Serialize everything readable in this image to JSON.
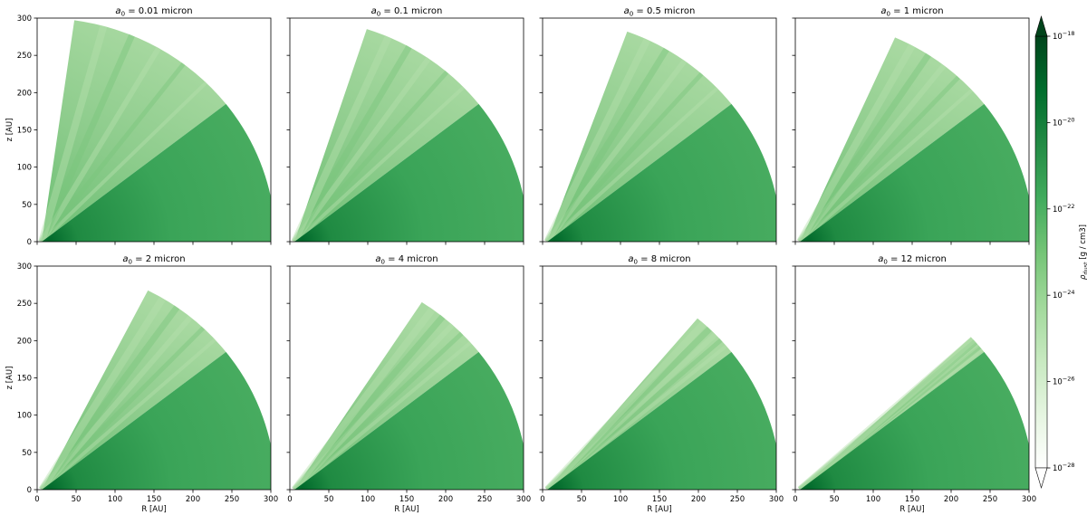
{
  "colorbar": {
    "label": "ρ_dust [g / cm3]",
    "label_main": "ρ",
    "label_sub": "dust",
    "label_rest": " [g / cm3]",
    "colormap": "Greens",
    "scale": "log",
    "range": [
      1e-28,
      1e-18
    ],
    "extend": "both",
    "ticks": [
      {
        "base": "10",
        "exp": "−18",
        "value": 1e-18
      },
      {
        "base": "10",
        "exp": "−20",
        "value": 1e-20
      },
      {
        "base": "10",
        "exp": "−22",
        "value": 1e-22
      },
      {
        "base": "10",
        "exp": "−24",
        "value": 1e-24
      },
      {
        "base": "10",
        "exp": "−26",
        "value": 1e-26
      },
      {
        "base": "10",
        "exp": "−28",
        "value": 1e-28
      }
    ],
    "colors": [
      "#ffffff",
      "#e5f5e0",
      "#c7e9c0",
      "#a1d99b",
      "#74c476",
      "#41ab5d",
      "#238b45",
      "#006d2c",
      "#00441b"
    ]
  },
  "chart_data": [
    {
      "type": "heatmap",
      "title_var": "a",
      "title_sub": "0",
      "title_value": "= 0.01 micron",
      "xlabel": "",
      "ylabel": "z [AU]",
      "xlim": [
        0,
        300
      ],
      "ylim": [
        0,
        300
      ],
      "envelope_outer_radius_AU": 300,
      "envelope_edge_angle_deg": 82,
      "disk_outer_radius_AU": 300,
      "disk_edge_angle_deg": 38,
      "inner_radius_AU": 10
    },
    {
      "type": "heatmap",
      "title_var": "a",
      "title_sub": "0",
      "title_value": "= 0.1 micron",
      "xlabel": "",
      "ylabel": "",
      "xlim": [
        0,
        300
      ],
      "ylim": [
        0,
        300
      ],
      "envelope_outer_radius_AU": 300,
      "envelope_edge_angle_deg": 72,
      "disk_outer_radius_AU": 300,
      "disk_edge_angle_deg": 38,
      "inner_radius_AU": 10
    },
    {
      "type": "heatmap",
      "title_var": "a",
      "title_sub": "0",
      "title_value": "= 0.5 micron",
      "xlabel": "",
      "ylabel": "",
      "xlim": [
        0,
        300
      ],
      "ylim": [
        0,
        300
      ],
      "envelope_outer_radius_AU": 300,
      "envelope_edge_angle_deg": 70,
      "disk_outer_radius_AU": 300,
      "disk_edge_angle_deg": 38,
      "inner_radius_AU": 10
    },
    {
      "type": "heatmap",
      "title_var": "a",
      "title_sub": "0",
      "title_value": "= 1 micron",
      "xlabel": "",
      "ylabel": "",
      "xlim": [
        0,
        300
      ],
      "ylim": [
        0,
        300
      ],
      "envelope_outer_radius_AU": 300,
      "envelope_edge_angle_deg": 66,
      "disk_outer_radius_AU": 300,
      "disk_edge_angle_deg": 38,
      "inner_radius_AU": 10
    },
    {
      "type": "heatmap",
      "title_var": "a",
      "title_sub": "0",
      "title_value": "= 2 micron",
      "xlabel": "R [AU]",
      "ylabel": "z [AU]",
      "xlim": [
        0,
        300
      ],
      "ylim": [
        0,
        300
      ],
      "envelope_outer_radius_AU": 300,
      "envelope_edge_angle_deg": 63,
      "disk_outer_radius_AU": 300,
      "disk_edge_angle_deg": 38,
      "inner_radius_AU": 10
    },
    {
      "type": "heatmap",
      "title_var": "a",
      "title_sub": "0",
      "title_value": "= 4 micron",
      "xlabel": "R [AU]",
      "ylabel": "",
      "xlim": [
        0,
        300
      ],
      "ylim": [
        0,
        300
      ],
      "envelope_outer_radius_AU": 300,
      "envelope_edge_angle_deg": 57,
      "disk_outer_radius_AU": 300,
      "disk_edge_angle_deg": 38,
      "inner_radius_AU": 10
    },
    {
      "type": "heatmap",
      "title_var": "a",
      "title_sub": "0",
      "title_value": "= 8 micron",
      "xlabel": "R [AU]",
      "ylabel": "",
      "xlim": [
        0,
        300
      ],
      "ylim": [
        0,
        300
      ],
      "envelope_outer_radius_AU": 300,
      "envelope_edge_angle_deg": 50,
      "disk_outer_radius_AU": 300,
      "disk_edge_angle_deg": 38,
      "inner_radius_AU": 10
    },
    {
      "type": "heatmap",
      "title_var": "a",
      "title_sub": "0",
      "title_value": "= 12 micron",
      "xlabel": "R [AU]",
      "ylabel": "",
      "xlim": [
        0,
        300
      ],
      "ylim": [
        0,
        300
      ],
      "envelope_outer_radius_AU": 300,
      "envelope_edge_angle_deg": 43,
      "disk_outer_radius_AU": 300,
      "disk_edge_angle_deg": 38,
      "inner_radius_AU": 10
    }
  ],
  "axis_ticks": {
    "x": [
      0,
      50,
      100,
      150,
      200,
      250,
      300
    ],
    "y": [
      0,
      50,
      100,
      150,
      200,
      250,
      300
    ]
  }
}
